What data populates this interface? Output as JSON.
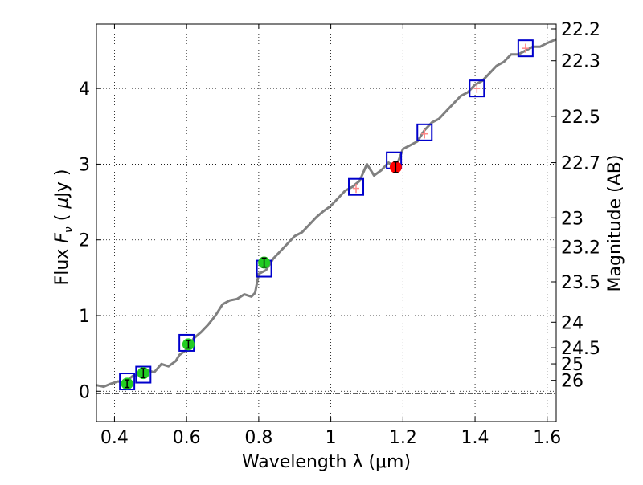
{
  "chart_data": {
    "type": "line",
    "title": "",
    "xlabel": "Wavelength  λ (μm)",
    "ylabel": "Flux  F_ν  ( μJy )",
    "y2label": "Magnitude (AB)",
    "xlim": [
      0.35,
      1.625
    ],
    "ylim": [
      -0.4,
      4.85
    ],
    "grid": true,
    "x_ticks": [
      0.4,
      0.6,
      0.8,
      1.0,
      1.2,
      1.4,
      1.6
    ],
    "x_tick_labels": [
      "0.4",
      "0.6",
      "0.8",
      "1",
      "1.2",
      "1.4",
      "1.6"
    ],
    "y_ticks": [
      0,
      1,
      2,
      3,
      4
    ],
    "y_tick_labels": [
      "0",
      "1",
      "2",
      "3",
      "4"
    ],
    "y2_tick_labels": [
      "22.2",
      "22.3",
      "22.5",
      "22.7",
      "23",
      "23.2",
      "23.5",
      "24",
      "24.5",
      "25",
      "26"
    ],
    "y2_tick_mags": [
      22.2,
      22.3,
      22.5,
      22.7,
      23.0,
      23.2,
      23.5,
      24.0,
      24.5,
      25.0,
      26.0
    ],
    "zero_line": 0,
    "series": [
      {
        "style": "spectrum",
        "color": "#808080",
        "x": [
          0.35,
          0.37,
          0.39,
          0.41,
          0.43,
          0.45,
          0.47,
          0.49,
          0.51,
          0.53,
          0.55,
          0.57,
          0.58,
          0.6,
          0.62,
          0.64,
          0.66,
          0.68,
          0.7,
          0.72,
          0.74,
          0.76,
          0.78,
          0.79,
          0.8,
          0.82,
          0.84,
          0.86,
          0.88,
          0.9,
          0.92,
          0.94,
          0.96,
          0.98,
          1.0,
          1.02,
          1.04,
          1.06,
          1.08,
          1.1,
          1.12,
          1.14,
          1.16,
          1.18,
          1.2,
          1.22,
          1.24,
          1.26,
          1.28,
          1.3,
          1.32,
          1.34,
          1.36,
          1.38,
          1.4,
          1.42,
          1.44,
          1.46,
          1.48,
          1.5,
          1.52,
          1.54,
          1.56,
          1.58,
          1.6,
          1.625
        ],
        "y": [
          0.08,
          0.06,
          0.1,
          0.13,
          0.12,
          0.2,
          0.22,
          0.28,
          0.25,
          0.36,
          0.33,
          0.4,
          0.48,
          0.55,
          0.7,
          0.78,
          0.88,
          1.0,
          1.15,
          1.2,
          1.22,
          1.28,
          1.25,
          1.3,
          1.55,
          1.6,
          1.75,
          1.85,
          1.95,
          2.05,
          2.1,
          2.2,
          2.3,
          2.38,
          2.45,
          2.55,
          2.65,
          2.7,
          2.78,
          3.0,
          2.85,
          2.92,
          3.02,
          2.95,
          3.2,
          3.25,
          3.3,
          3.45,
          3.55,
          3.6,
          3.7,
          3.8,
          3.9,
          3.95,
          4.05,
          4.1,
          4.2,
          4.3,
          4.35,
          4.45,
          4.45,
          4.5,
          4.55,
          4.55,
          4.6,
          4.65
        ]
      },
      {
        "style": "model-boxes",
        "color": "#0000cc",
        "x": [
          0.435,
          0.48,
          0.6,
          0.815,
          1.07,
          1.175,
          1.26,
          1.405,
          1.54
        ],
        "y": [
          0.13,
          0.22,
          0.64,
          1.62,
          2.7,
          3.05,
          3.42,
          4.0,
          4.53
        ]
      },
      {
        "style": "photometry",
        "color": "#22cc22",
        "x": [
          0.435,
          0.48,
          0.605,
          0.815
        ],
        "y": [
          0.1,
          0.24,
          0.62,
          1.7
        ],
        "err": [
          0.05,
          0.06,
          0.05,
          0.06
        ]
      },
      {
        "style": "photometry",
        "color": "#ff0000",
        "x": [
          1.18
        ],
        "y": [
          2.96
        ],
        "err": [
          0.07
        ]
      },
      {
        "style": "upper-limit",
        "color": "#ff8888",
        "x": [
          1.07,
          1.26,
          1.405,
          1.54
        ],
        "y": [
          2.68,
          3.4,
          4.0,
          4.53
        ],
        "err": [
          0.06,
          0.06,
          0.06,
          0.06
        ]
      }
    ]
  }
}
